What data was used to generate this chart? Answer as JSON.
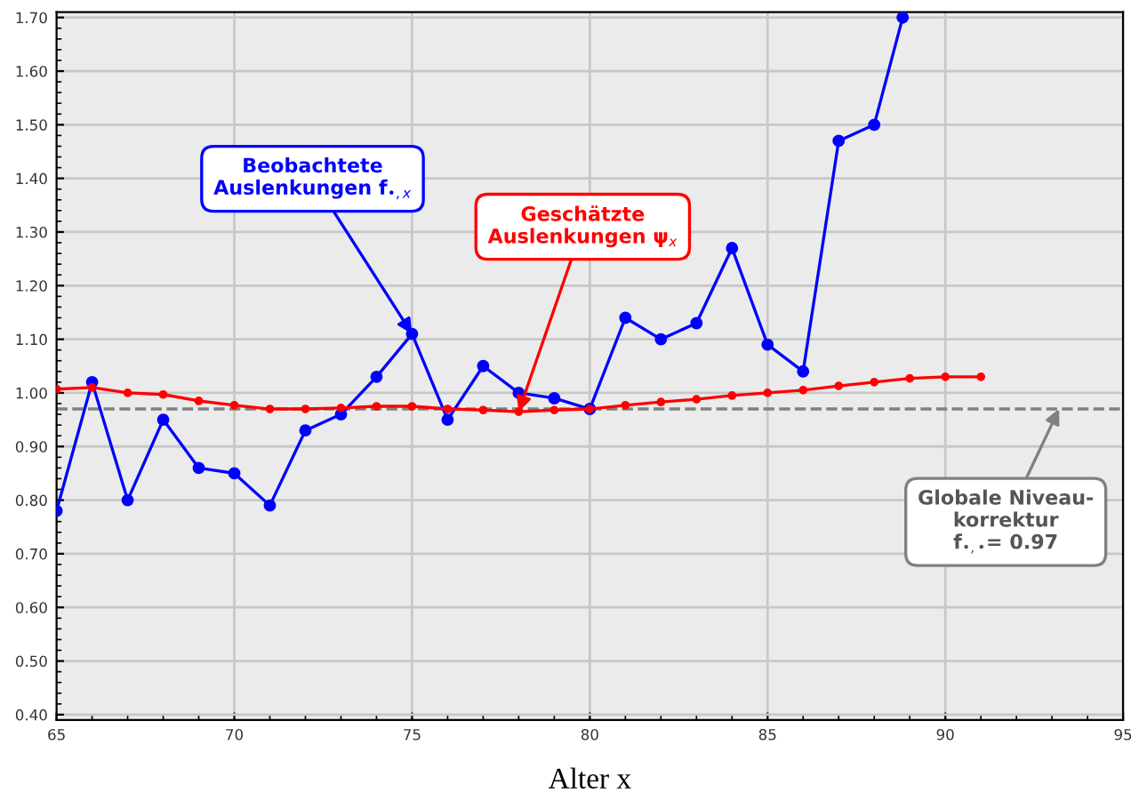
{
  "chart_data": {
    "type": "line",
    "xlabel": "Alter x",
    "xlim": [
      65,
      95
    ],
    "xticks": [
      65,
      70,
      75,
      80,
      85,
      90,
      95
    ],
    "ylim": [
      0.39,
      1.71
    ],
    "yticks": [
      {
        "value": 0.4,
        "label": "0.40"
      },
      {
        "value": 0.5,
        "label": "0.50"
      },
      {
        "value": 0.6,
        "label": "0.60"
      },
      {
        "value": 0.7,
        "label": "0.70"
      },
      {
        "value": 0.8,
        "label": "0.80"
      },
      {
        "value": 0.9,
        "label": "0.90"
      },
      {
        "value": 1.0,
        "label": "1.00"
      },
      {
        "value": 1.1,
        "label": "1.10"
      },
      {
        "value": 1.2,
        "label": "1.20"
      },
      {
        "value": 1.3,
        "label": "1.30"
      },
      {
        "value": 1.4,
        "label": "1.40"
      },
      {
        "value": 1.5,
        "label": "1.50"
      },
      {
        "value": 1.6,
        "label": "1.60"
      },
      {
        "value": 1.7,
        "label": "1.70"
      }
    ],
    "grid": true,
    "marker": "circle",
    "line_style": "solid",
    "series": [
      {
        "color": "#0000ff",
        "x": [
          65,
          66,
          67,
          68,
          69,
          70,
          71,
          72,
          73,
          74,
          75,
          76,
          77,
          78,
          79,
          80,
          81,
          82,
          83,
          84,
          85,
          86,
          87,
          88,
          88.8
        ],
        "values": [
          0.78,
          1.02,
          0.8,
          0.95,
          0.86,
          0.85,
          0.79,
          0.93,
          0.96,
          1.03,
          1.11,
          0.95,
          1.05,
          1.0,
          0.99,
          0.97,
          1.14,
          1.1,
          1.13,
          1.27,
          1.09,
          1.04,
          1.47,
          1.5,
          1.7
        ]
      },
      {
        "color": "#ff0000",
        "x": [
          65,
          66,
          67,
          68,
          69,
          70,
          71,
          72,
          73,
          74,
          75,
          76,
          77,
          78,
          79,
          80,
          81,
          82,
          83,
          84,
          85,
          86,
          87,
          88,
          89,
          90,
          91
        ],
        "values": [
          1.007,
          1.01,
          1.0,
          0.997,
          0.985,
          0.977,
          0.97,
          0.97,
          0.972,
          0.975,
          0.975,
          0.97,
          0.968,
          0.965,
          0.968,
          0.97,
          0.977,
          0.983,
          0.988,
          0.995,
          1.0,
          1.005,
          1.013,
          1.02,
          1.027,
          1.03,
          1.03
        ]
      }
    ],
    "ref_lines": [
      {
        "axis": "y",
        "value": 0.97,
        "color": "#808080",
        "line_style": "dashed"
      }
    ],
    "annotations": [
      {
        "text": "Beobachtete\nAuslenkungen f$_{•,x}$",
        "x": 75,
        "y": 1.11
      },
      {
        "text": "Geschätzte\nAuslenkungen ψ$_{x}$",
        "x": 78,
        "y": 0.965
      },
      {
        "text": "Globale Niveau-\nkorrektur\nf$_{•,•}$= 0.97",
        "x": 93.2,
        "y": 0.97
      }
    ]
  }
}
